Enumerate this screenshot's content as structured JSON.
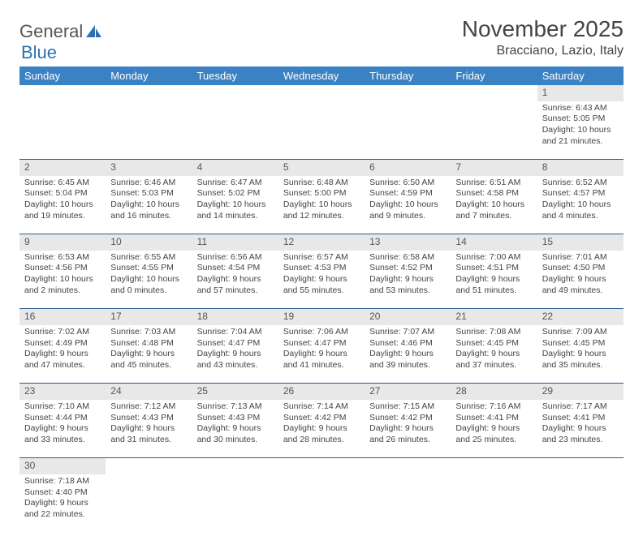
{
  "logo": {
    "part1": "General",
    "part2": "Blue"
  },
  "title": "November 2025",
  "location": "Bracciano, Lazio, Italy",
  "day_headers": [
    "Sunday",
    "Monday",
    "Tuesday",
    "Wednesday",
    "Thursday",
    "Friday",
    "Saturday"
  ],
  "colors": {
    "header_bg": "#3b82c4",
    "header_text": "#ffffff",
    "daynum_bg": "#e8e8e8",
    "border": "#2a5d8f",
    "logo_accent": "#2a72b5"
  },
  "weeks": [
    [
      null,
      null,
      null,
      null,
      null,
      null,
      {
        "n": "1",
        "sunrise": "6:43 AM",
        "sunset": "5:05 PM",
        "day_h": "10",
        "day_m": "21"
      }
    ],
    [
      {
        "n": "2",
        "sunrise": "6:45 AM",
        "sunset": "5:04 PM",
        "day_h": "10",
        "day_m": "19"
      },
      {
        "n": "3",
        "sunrise": "6:46 AM",
        "sunset": "5:03 PM",
        "day_h": "10",
        "day_m": "16"
      },
      {
        "n": "4",
        "sunrise": "6:47 AM",
        "sunset": "5:02 PM",
        "day_h": "10",
        "day_m": "14"
      },
      {
        "n": "5",
        "sunrise": "6:48 AM",
        "sunset": "5:00 PM",
        "day_h": "10",
        "day_m": "12"
      },
      {
        "n": "6",
        "sunrise": "6:50 AM",
        "sunset": "4:59 PM",
        "day_h": "10",
        "day_m": "9"
      },
      {
        "n": "7",
        "sunrise": "6:51 AM",
        "sunset": "4:58 PM",
        "day_h": "10",
        "day_m": "7"
      },
      {
        "n": "8",
        "sunrise": "6:52 AM",
        "sunset": "4:57 PM",
        "day_h": "10",
        "day_m": "4"
      }
    ],
    [
      {
        "n": "9",
        "sunrise": "6:53 AM",
        "sunset": "4:56 PM",
        "day_h": "10",
        "day_m": "2"
      },
      {
        "n": "10",
        "sunrise": "6:55 AM",
        "sunset": "4:55 PM",
        "day_h": "10",
        "day_m": "0"
      },
      {
        "n": "11",
        "sunrise": "6:56 AM",
        "sunset": "4:54 PM",
        "day_h": "9",
        "day_m": "57"
      },
      {
        "n": "12",
        "sunrise": "6:57 AM",
        "sunset": "4:53 PM",
        "day_h": "9",
        "day_m": "55"
      },
      {
        "n": "13",
        "sunrise": "6:58 AM",
        "sunset": "4:52 PM",
        "day_h": "9",
        "day_m": "53"
      },
      {
        "n": "14",
        "sunrise": "7:00 AM",
        "sunset": "4:51 PM",
        "day_h": "9",
        "day_m": "51"
      },
      {
        "n": "15",
        "sunrise": "7:01 AM",
        "sunset": "4:50 PM",
        "day_h": "9",
        "day_m": "49"
      }
    ],
    [
      {
        "n": "16",
        "sunrise": "7:02 AM",
        "sunset": "4:49 PM",
        "day_h": "9",
        "day_m": "47"
      },
      {
        "n": "17",
        "sunrise": "7:03 AM",
        "sunset": "4:48 PM",
        "day_h": "9",
        "day_m": "45"
      },
      {
        "n": "18",
        "sunrise": "7:04 AM",
        "sunset": "4:47 PM",
        "day_h": "9",
        "day_m": "43"
      },
      {
        "n": "19",
        "sunrise": "7:06 AM",
        "sunset": "4:47 PM",
        "day_h": "9",
        "day_m": "41"
      },
      {
        "n": "20",
        "sunrise": "7:07 AM",
        "sunset": "4:46 PM",
        "day_h": "9",
        "day_m": "39"
      },
      {
        "n": "21",
        "sunrise": "7:08 AM",
        "sunset": "4:45 PM",
        "day_h": "9",
        "day_m": "37"
      },
      {
        "n": "22",
        "sunrise": "7:09 AM",
        "sunset": "4:45 PM",
        "day_h": "9",
        "day_m": "35"
      }
    ],
    [
      {
        "n": "23",
        "sunrise": "7:10 AM",
        "sunset": "4:44 PM",
        "day_h": "9",
        "day_m": "33"
      },
      {
        "n": "24",
        "sunrise": "7:12 AM",
        "sunset": "4:43 PM",
        "day_h": "9",
        "day_m": "31"
      },
      {
        "n": "25",
        "sunrise": "7:13 AM",
        "sunset": "4:43 PM",
        "day_h": "9",
        "day_m": "30"
      },
      {
        "n": "26",
        "sunrise": "7:14 AM",
        "sunset": "4:42 PM",
        "day_h": "9",
        "day_m": "28"
      },
      {
        "n": "27",
        "sunrise": "7:15 AM",
        "sunset": "4:42 PM",
        "day_h": "9",
        "day_m": "26"
      },
      {
        "n": "28",
        "sunrise": "7:16 AM",
        "sunset": "4:41 PM",
        "day_h": "9",
        "day_m": "25"
      },
      {
        "n": "29",
        "sunrise": "7:17 AM",
        "sunset": "4:41 PM",
        "day_h": "9",
        "day_m": "23"
      }
    ],
    [
      {
        "n": "30",
        "sunrise": "7:18 AM",
        "sunset": "4:40 PM",
        "day_h": "9",
        "day_m": "22"
      },
      null,
      null,
      null,
      null,
      null,
      null
    ]
  ],
  "labels": {
    "sunrise": "Sunrise:",
    "sunset": "Sunset:",
    "daylight": "Daylight:",
    "hours": "hours",
    "and": "and",
    "minutes": "minutes."
  }
}
